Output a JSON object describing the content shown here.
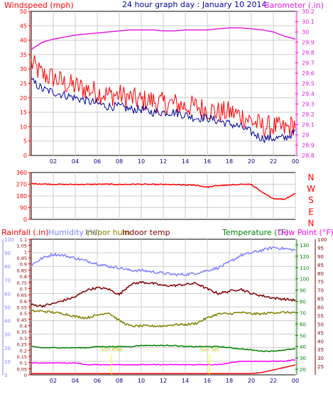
{
  "colors": {
    "wind": "#ff0000",
    "wind_avg": "#0000a0",
    "barometer": "#e020e0",
    "direction": "#ff0000",
    "rain_axis": "#ff0000",
    "rain": "#ff0000",
    "humidity": "#8080ff",
    "indoor_hum": "#808000",
    "indoor_temp": "#800000",
    "temperature": "#008000",
    "dewpoint": "#ff00ff",
    "title": "#0000a0",
    "grid": "#cccccc",
    "axis": "#000000"
  },
  "chart_data": [
    {
      "type": "line",
      "title": "24 hour graph day : January 10 2014",
      "ylabel_left": "Windspeed (mph)",
      "ylabel_right": "Barometer (.in)",
      "xticks": [
        "02",
        "04",
        "06",
        "08",
        "10",
        "12",
        "14",
        "16",
        "18",
        "20",
        "22",
        "00"
      ],
      "ylim_left": [
        0,
        50
      ],
      "yticks_left": [
        0,
        5,
        10,
        15,
        20,
        25,
        30,
        35,
        40,
        45,
        50
      ],
      "ylim_right": [
        28.8,
        30.2
      ],
      "yticks_right": [
        "28.8",
        "28.9",
        "29",
        "29.1",
        "29.2",
        "29.3",
        "29.4",
        "29.5",
        "29.6",
        "29.7",
        "29.8",
        "29.9",
        "30",
        "30.1",
        "30.2"
      ],
      "grid": true,
      "x_hours": [
        0,
        1,
        2,
        3,
        4,
        5,
        6,
        7,
        8,
        9,
        10,
        11,
        12,
        13,
        14,
        15,
        16,
        17,
        18,
        19,
        20,
        21,
        22,
        23,
        24
      ],
      "series": [
        {
          "axis": "left",
          "style": "wind",
          "values": [
            32,
            28,
            27,
            25,
            24,
            23,
            22,
            21,
            21,
            20,
            19,
            19,
            18,
            18,
            17,
            17,
            16,
            15,
            15,
            14,
            12,
            10,
            10,
            9,
            11
          ],
          "noise": 4
        },
        {
          "axis": "left",
          "style": "wind_avg",
          "values": [
            26,
            23,
            22,
            21,
            20,
            19,
            18,
            17,
            17,
            16,
            16,
            15,
            15,
            15,
            14,
            13,
            13,
            12,
            11,
            10,
            8,
            6,
            6,
            6,
            8
          ],
          "noise": 1.5
        },
        {
          "axis": "right",
          "style": "barometer",
          "values": [
            29.83,
            29.9,
            29.93,
            29.95,
            29.97,
            29.98,
            29.99,
            30,
            30.01,
            30.02,
            30.02,
            30.02,
            30.01,
            30.01,
            30.02,
            30.02,
            30.02,
            30.03,
            30.04,
            30.04,
            30.03,
            30.02,
            30,
            29.96,
            29.93
          ],
          "noise": 0
        }
      ]
    },
    {
      "type": "line",
      "ylabels_right": [
        "N",
        "W",
        "S",
        "E",
        "N"
      ],
      "ylim": [
        0,
        360
      ],
      "yticks": [
        0,
        90,
        180,
        270,
        360
      ],
      "xticks": [
        "02",
        "04",
        "06",
        "08",
        "10",
        "12",
        "14",
        "16",
        "18",
        "20",
        "22",
        "00"
      ],
      "grid": true,
      "x_hours": [
        0,
        1,
        2,
        3,
        4,
        5,
        6,
        7,
        8,
        9,
        10,
        11,
        12,
        13,
        14,
        15,
        16,
        17,
        18,
        19,
        20,
        21,
        22,
        23,
        24
      ],
      "series": [
        {
          "style": "direction",
          "values": [
            275,
            272,
            270,
            268,
            269,
            268,
            270,
            270,
            268,
            270,
            270,
            268,
            268,
            266,
            264,
            262,
            248,
            260,
            262,
            270,
            268,
            205,
            160,
            155,
            200
          ],
          "noise": 4
        }
      ]
    },
    {
      "type": "line",
      "legend": {
        "rain": "Rainfall (.in)",
        "humidity": "Humidity (%)",
        "indoor_hum": "Indoor hum",
        "indoor_temp": "Indoor temp",
        "temperature": "Temperature (°F)",
        "dewpoint": "Dew Point (°F)"
      },
      "axis_rain": {
        "ylim": [
          0,
          1.1
        ],
        "ticks": [
          "0",
          "0.05",
          "0.1",
          "0.15",
          "0.2",
          "0.25",
          "0.3",
          "0.35",
          "0.4",
          "0.45",
          "0.5",
          "0.55",
          "0.6",
          "0.65",
          "0.7",
          "0.75",
          "0.8",
          "0.85",
          "0.9",
          "0.95",
          "1",
          "1.05",
          "1.1"
        ]
      },
      "axis_humidity": {
        "ylim": [
          0,
          100
        ],
        "ticks": [
          0,
          10,
          20,
          30,
          40,
          50,
          60,
          70,
          80,
          90,
          100
        ]
      },
      "axis_temp": {
        "ylim": [
          15,
          135
        ],
        "ticks": [
          20,
          30,
          40,
          50,
          60,
          70,
          80,
          90,
          100,
          110,
          120,
          130
        ]
      },
      "axis_dewpoint": {
        "ylim": [
          20,
          100
        ],
        "ticks": [
          25,
          30,
          35,
          40,
          45,
          50,
          55,
          60,
          65,
          70,
          75,
          80,
          85,
          90,
          95,
          100
        ]
      },
      "xticks": [
        "02",
        "04",
        "06",
        "08",
        "10",
        "12",
        "14",
        "16",
        "18",
        "20",
        "22",
        "00"
      ],
      "grid": true,
      "x_hours": [
        0,
        1,
        2,
        3,
        4,
        5,
        6,
        7,
        8,
        9,
        10,
        11,
        12,
        13,
        14,
        15,
        16,
        17,
        18,
        19,
        20,
        21,
        22,
        23,
        24
      ],
      "series": [
        {
          "axis": "rain",
          "style": "rain",
          "values": [
            0.01,
            0.01,
            0.01,
            0.01,
            0.01,
            0.01,
            0.01,
            0.01,
            0.01,
            0.01,
            0.01,
            0.01,
            0.01,
            0.01,
            0.01,
            0.01,
            0.01,
            0.01,
            0.01,
            0.01,
            0.01,
            0.02,
            0.04,
            0.06,
            0.08
          ],
          "noise": 0
        },
        {
          "axis": "humidity",
          "style": "humidity",
          "values": [
            81,
            86,
            89,
            88,
            86,
            84,
            82,
            80,
            79,
            77,
            77,
            76,
            75,
            74,
            74,
            75,
            77,
            79,
            83,
            88,
            90,
            92,
            94,
            93,
            92
          ],
          "noise": 1
        },
        {
          "axis": "temp",
          "style": "indoor_temp",
          "values": [
            77,
            76,
            78,
            81,
            84,
            90,
            92,
            91,
            86,
            95,
            97,
            96,
            94,
            94,
            95,
            96,
            91,
            87,
            89,
            91,
            87,
            85,
            83,
            82,
            81
          ],
          "noise": 1
        },
        {
          "axis": "humidity",
          "style": "indoor_hum",
          "values": [
            47,
            47,
            46,
            45,
            43,
            42,
            44,
            46,
            40,
            36,
            36,
            36,
            36,
            37,
            37,
            38,
            42,
            45,
            45,
            46,
            45,
            45,
            46,
            46,
            46
          ],
          "noise": 0.8
        },
        {
          "axis": "temp",
          "style": "temperature",
          "values": [
            40,
            39,
            39,
            39,
            39,
            39,
            40,
            40,
            40,
            40,
            41,
            41,
            41,
            41,
            40,
            40,
            40,
            40,
            39,
            38,
            37,
            36,
            36,
            37,
            38
          ],
          "noise": 0.4
        },
        {
          "axis": "dewpoint",
          "style": "dewpoint",
          "values": [
            27,
            27,
            27,
            27,
            27,
            26,
            26,
            26,
            26,
            26,
            26,
            26,
            26,
            26,
            26,
            26,
            26,
            26,
            27,
            28,
            28,
            28,
            28,
            28,
            29
          ],
          "noise": 0.2
        }
      ],
      "markers": [
        {
          "hour": 7.3,
          "label": "Sun Rise"
        },
        {
          "hour": 16.2,
          "label": "Sun Set"
        }
      ]
    }
  ]
}
